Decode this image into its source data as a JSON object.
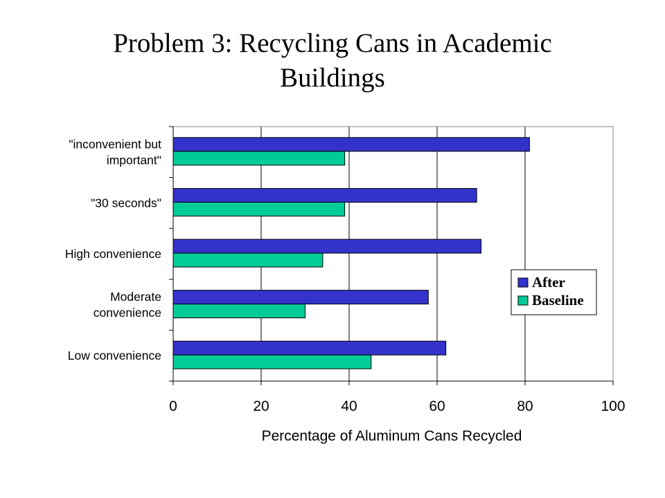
{
  "slide": {
    "title": "Problem 3: Recycling Cans in Academic\nBuildings"
  },
  "colors": {
    "after": "#3333cc",
    "baseline": "#00cc99",
    "gridline": "#000000",
    "bar_outline": "#000000"
  },
  "chart_data": {
    "type": "bar",
    "orientation": "horizontal",
    "categories": [
      "\"inconvenient but important\"",
      "\"30 seconds\"",
      "High convenience",
      "Moderate convenience",
      "Low convenience"
    ],
    "category_label_lines": [
      [
        "\"inconvenient but",
        "important\""
      ],
      [
        "\"30 seconds\""
      ],
      [
        "High convenience"
      ],
      [
        "Moderate",
        "convenience"
      ],
      [
        "Low convenience"
      ]
    ],
    "series": [
      {
        "name": "After",
        "values": [
          81,
          69,
          70,
          58,
          62
        ]
      },
      {
        "name": "Baseline",
        "values": [
          39,
          39,
          34,
          30,
          45
        ]
      }
    ],
    "xlabel": "Percentage of Aluminum Cans Recycled",
    "ylabel": "",
    "xlim": [
      0,
      100
    ],
    "xticks": [
      0,
      20,
      40,
      60,
      80,
      100
    ],
    "grid": true,
    "legend_position": "right"
  }
}
